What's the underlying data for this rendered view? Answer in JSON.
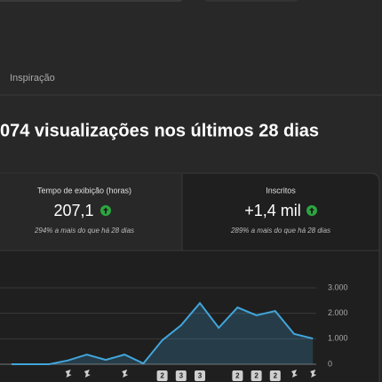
{
  "tab": {
    "label": "Inspiração"
  },
  "headline": "074 visualizações nos últimos 28 dias",
  "metrics": [
    {
      "title": "Tempo de exibição (horas)",
      "value": "207,1",
      "change": "294% a mais do que há 28 dias"
    },
    {
      "title": "Inscritos",
      "value": "+1,4 mil",
      "change": "289% a mais do que há 28 dias"
    }
  ],
  "chart_data": {
    "type": "area",
    "color": "#41a6dc",
    "values": [
      0,
      0,
      0,
      150,
      380,
      170,
      380,
      30,
      940,
      1530,
      2400,
      1430,
      2230,
      1920,
      2090,
      1190,
      1010
    ],
    "ylim": [
      0,
      3000
    ],
    "yticks": [
      0,
      {
        "value": 1000,
        "label": "1.000"
      },
      {
        "value": 2000,
        "label": "2.000"
      },
      {
        "value": 3000,
        "label": "3.000"
      }
    ],
    "grid": true,
    "badges": [
      2,
      3,
      3,
      2,
      2,
      2
    ]
  }
}
